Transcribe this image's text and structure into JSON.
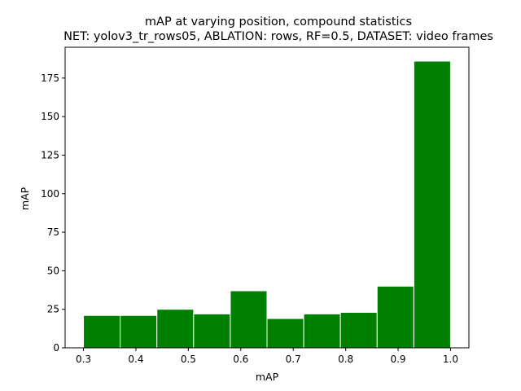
{
  "chart_data": {
    "type": "bar",
    "title": "mAP at varying position, compound statistics",
    "subtitle": "NET: yolov3_tr_rows05, ABLATION: rows, RF=0.5, DATASET: video frames",
    "xlabel": "mAP",
    "ylabel": "mAP",
    "xlim": [
      0.265,
      1.035
    ],
    "ylim": [
      0,
      195
    ],
    "bar_color": "#008000",
    "edge_color": "#ffffff",
    "grid": false,
    "legend": "none",
    "bins": [
      {
        "x0": 0.3,
        "x1": 0.37,
        "value": 21
      },
      {
        "x0": 0.37,
        "x1": 0.44,
        "value": 21
      },
      {
        "x0": 0.44,
        "x1": 0.51,
        "value": 25
      },
      {
        "x0": 0.51,
        "x1": 0.58,
        "value": 22
      },
      {
        "x0": 0.58,
        "x1": 0.65,
        "value": 37
      },
      {
        "x0": 0.65,
        "x1": 0.72,
        "value": 19
      },
      {
        "x0": 0.72,
        "x1": 0.79,
        "value": 22
      },
      {
        "x0": 0.79,
        "x1": 0.86,
        "value": 23
      },
      {
        "x0": 0.86,
        "x1": 0.93,
        "value": 40
      },
      {
        "x0": 0.93,
        "x1": 1.0,
        "value": 186
      }
    ],
    "xticks": [
      0.3,
      0.4,
      0.5,
      0.6,
      0.7,
      0.8,
      0.9,
      1.0
    ],
    "xtick_labels": [
      "0.3",
      "0.4",
      "0.5",
      "0.6",
      "0.7",
      "0.8",
      "0.9",
      "1.0"
    ],
    "yticks": [
      0,
      25,
      50,
      75,
      100,
      125,
      150,
      175
    ],
    "ytick_labels": [
      "0",
      "25",
      "50",
      "75",
      "100",
      "125",
      "150",
      "175"
    ]
  }
}
